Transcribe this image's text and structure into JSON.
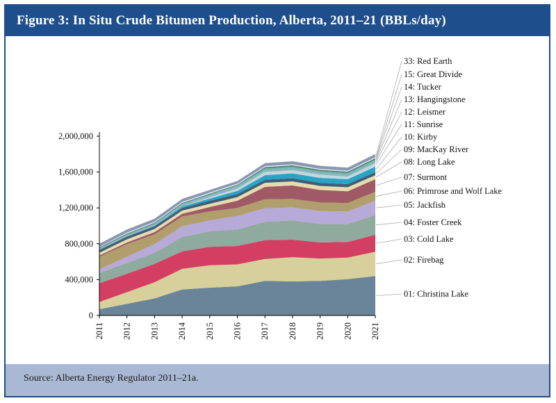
{
  "header": {
    "title": "Figure 3: In Situ Crude Bitumen Production, Alberta, 2011–21 (BBLs/day)"
  },
  "footer": {
    "source": "Source: Alberta Energy Regulator 2011–21a."
  },
  "chart_data": {
    "type": "area",
    "stacked": true,
    "title": "Figure 3: In Situ Crude Bitumen Production, Alberta, 2011–21 (BBLs/day)",
    "x": [
      "2011",
      "2012",
      "2013",
      "2014",
      "2015",
      "2016",
      "2017",
      "2018",
      "2019",
      "2020",
      "2021"
    ],
    "ylim": [
      0,
      2000000
    ],
    "yticks": [
      0,
      400000,
      800000,
      1200000,
      1600000,
      2000000
    ],
    "ytick_labels": [
      "0",
      "400,000",
      "800,000",
      "1,200,000",
      "1,600,000",
      "2,000,000"
    ],
    "legend_position": "right",
    "series": [
      {
        "name": "01: Christina Lake",
        "color": "#6a8499",
        "values": [
          70000,
          130000,
          190000,
          290000,
          310000,
          325000,
          385000,
          380000,
          385000,
          405000,
          440000
        ]
      },
      {
        "name": "02: Firebag",
        "color": "#d8d09a",
        "values": [
          80000,
          130000,
          180000,
          230000,
          250000,
          245000,
          245000,
          270000,
          250000,
          240000,
          270000
        ]
      },
      {
        "name": "03: Cold Lake",
        "color": "#d23f62",
        "values": [
          210000,
          205000,
          205000,
          195000,
          205000,
          205000,
          210000,
          195000,
          180000,
          175000,
          190000
        ]
      },
      {
        "name": "04: Foster Creek",
        "color": "#8faa9e",
        "values": [
          115000,
          120000,
          125000,
          160000,
          175000,
          185000,
          205000,
          215000,
          205000,
          200000,
          220000
        ]
      },
      {
        "name": "05: Jackfish",
        "color": "#b7a9d8",
        "values": [
          40000,
          70000,
          95000,
          120000,
          120000,
          150000,
          150000,
          145000,
          145000,
          140000,
          160000
        ]
      },
      {
        "name": "06: Primrose and Wolf Lake",
        "color": "#b09f6d",
        "values": [
          140000,
          140000,
          110000,
          110000,
          100000,
          90000,
          100000,
          95000,
          95000,
          95000,
          100000
        ]
      },
      {
        "name": "07: Surmont",
        "color": "#a05a66",
        "values": [
          15000,
          20000,
          25000,
          30000,
          50000,
          80000,
          140000,
          150000,
          140000,
          130000,
          140000
        ]
      },
      {
        "name": "08: Long Lake",
        "color": "#e8dcae",
        "values": [
          30000,
          35000,
          35000,
          35000,
          35000,
          40000,
          45000,
          45000,
          45000,
          45000,
          45000
        ]
      },
      {
        "name": "09: MacKay River",
        "color": "#3f5f78",
        "values": [
          30000,
          30000,
          30000,
          30000,
          35000,
          35000,
          35000,
          35000,
          35000,
          35000,
          35000
        ]
      },
      {
        "name": "10: Kirby",
        "color": "#2aa4c5",
        "values": [
          0,
          0,
          5000,
          15000,
          25000,
          35000,
          50000,
          55000,
          55000,
          55000,
          60000
        ]
      },
      {
        "name": "11: Sunrise",
        "color": "#c7d6dc",
        "values": [
          0,
          0,
          0,
          0,
          15000,
          25000,
          35000,
          35000,
          35000,
          30000,
          40000
        ]
      },
      {
        "name": "12: Leismer",
        "color": "#8fb3c4",
        "values": [
          10000,
          15000,
          15000,
          20000,
          20000,
          20000,
          20000,
          20000,
          20000,
          20000,
          20000
        ]
      },
      {
        "name": "13: Hangingstone",
        "color": "#6fb6a2",
        "values": [
          10000,
          10000,
          10000,
          10000,
          10000,
          15000,
          20000,
          20000,
          20000,
          20000,
          20000
        ]
      },
      {
        "name": "14: Tucker",
        "color": "#4d7d76",
        "values": [
          10000,
          10000,
          10000,
          10000,
          10000,
          10000,
          15000,
          15000,
          15000,
          15000,
          15000
        ]
      },
      {
        "name": "15: Great Divide",
        "color": "#e6f2fa",
        "values": [
          5000,
          10000,
          10000,
          10000,
          10000,
          10000,
          10000,
          10000,
          10000,
          10000,
          10000
        ]
      },
      {
        "name": "33: Red Earth",
        "color": "#8b96b0",
        "values": [
          35000,
          35000,
          35000,
          35000,
          30000,
          30000,
          35000,
          35000,
          35000,
          35000,
          35000
        ]
      }
    ]
  }
}
